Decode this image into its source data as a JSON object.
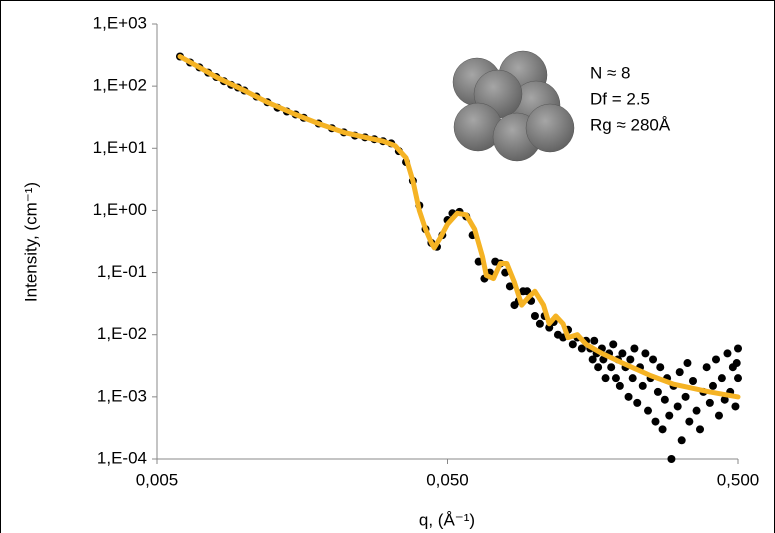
{
  "chart_data": {
    "type": "scatter",
    "xlabel": "q, (Å⁻¹)",
    "ylabel": "Intensity, (cm⁻¹)",
    "log_x": true,
    "log_y": true,
    "xlim": [
      0.005,
      0.5
    ],
    "ylim": [
      0.0001,
      1000
    ],
    "xticks": [
      {
        "value": 0.005,
        "label": "0,005"
      },
      {
        "value": 0.05,
        "label": "0,050"
      },
      {
        "value": 0.5,
        "label": "0,500"
      }
    ],
    "yticks": [
      {
        "value": 0.0001,
        "label": "1,E-04"
      },
      {
        "value": 0.001,
        "label": "1,E-03"
      },
      {
        "value": 0.01,
        "label": "1,E-02"
      },
      {
        "value": 0.1,
        "label": "1,E-01"
      },
      {
        "value": 1,
        "label": "1,E+00"
      },
      {
        "value": 10,
        "label": "1,E+01"
      },
      {
        "value": 100,
        "label": "1,E+02"
      },
      {
        "value": 1000,
        "label": "1,E+03"
      }
    ],
    "annotations": [
      "N ≈ 8",
      "Df = 2.5",
      "Rg ≈ 280Å"
    ],
    "series": [
      {
        "kind": "marker",
        "color": "#000000",
        "x": [
          0.006,
          0.0065,
          0.007,
          0.0075,
          0.008,
          0.0085,
          0.009,
          0.0095,
          0.01,
          0.011,
          0.012,
          0.013,
          0.014,
          0.015,
          0.016,
          0.018,
          0.02,
          0.022,
          0.024,
          0.026,
          0.028,
          0.03,
          0.032,
          0.034,
          0.036,
          0.038,
          0.04,
          0.042,
          0.044,
          0.046,
          0.048,
          0.05,
          0.052,
          0.055,
          0.058,
          0.061,
          0.064,
          0.067,
          0.07,
          0.073,
          0.076,
          0.079,
          0.082,
          0.085,
          0.088,
          0.091,
          0.094,
          0.097,
          0.1,
          0.104,
          0.108,
          0.112,
          0.116,
          0.12,
          0.125,
          0.13,
          0.135,
          0.14,
          0.145,
          0.15,
          0.155,
          0.158,
          0.16,
          0.163,
          0.165,
          0.17,
          0.172,
          0.175,
          0.18,
          0.183,
          0.186,
          0.19,
          0.193,
          0.196,
          0.2,
          0.205,
          0.21,
          0.213,
          0.217,
          0.22,
          0.225,
          0.23,
          0.235,
          0.24,
          0.245,
          0.25,
          0.255,
          0.26,
          0.265,
          0.27,
          0.275,
          0.28,
          0.285,
          0.29,
          0.295,
          0.3,
          0.31,
          0.315,
          0.32,
          0.33,
          0.335,
          0.34,
          0.35,
          0.36,
          0.37,
          0.38,
          0.39,
          0.4,
          0.41,
          0.42,
          0.43,
          0.44,
          0.45,
          0.46,
          0.47,
          0.48,
          0.49,
          0.5,
          0.5,
          0.495
        ],
        "values": [
          300,
          240,
          200,
          165,
          140,
          120,
          105,
          95,
          85,
          68,
          55,
          45,
          39,
          35,
          31,
          25,
          21,
          18,
          16,
          15,
          14,
          13,
          12,
          9,
          6,
          3,
          1.2,
          0.5,
          0.3,
          0.26,
          0.4,
          0.7,
          0.9,
          0.95,
          0.8,
          0.4,
          0.15,
          0.08,
          0.1,
          0.15,
          0.14,
          0.1,
          0.06,
          0.03,
          0.035,
          0.05,
          0.05,
          0.035,
          0.02,
          0.015,
          0.02,
          0.013,
          0.016,
          0.01,
          0.009,
          0.012,
          0.007,
          0.009,
          0.006,
          0.008,
          0.006,
          0.004,
          0.008,
          0.005,
          0.003,
          0.006,
          0.004,
          0.002,
          0.005,
          0.003,
          0.007,
          0.002,
          0.004,
          0.0015,
          0.005,
          0.003,
          0.001,
          0.004,
          0.002,
          0.006,
          0.0008,
          0.003,
          0.0015,
          0.005,
          0.0006,
          0.002,
          0.004,
          0.0004,
          0.0012,
          0.003,
          0.0003,
          0.0009,
          0.002,
          0.0005,
          0.0001,
          0.0015,
          0.0007,
          0.0025,
          0.0002,
          0.001,
          0.0035,
          0.0004,
          0.0018,
          0.0006,
          0.0003,
          0.0012,
          0.003,
          0.0008,
          0.0015,
          0.004,
          0.0005,
          0.002,
          0.0009,
          0.005,
          0.0012,
          0.003,
          0.0007,
          0.006,
          0.002,
          0.0035
        ]
      },
      {
        "kind": "line",
        "color": "#f5b324",
        "x": [
          0.006,
          0.007,
          0.008,
          0.01,
          0.012,
          0.015,
          0.018,
          0.022,
          0.026,
          0.03,
          0.033,
          0.036,
          0.038,
          0.04,
          0.042,
          0.044,
          0.045,
          0.047,
          0.05,
          0.054,
          0.058,
          0.062,
          0.066,
          0.068,
          0.072,
          0.076,
          0.08,
          0.085,
          0.09,
          0.095,
          0.1,
          0.107,
          0.112,
          0.118,
          0.125,
          0.13,
          0.14,
          0.15,
          0.17,
          0.2,
          0.25,
          0.3,
          0.4,
          0.5
        ],
        "values": [
          300,
          200,
          140,
          85,
          55,
          35,
          25,
          18,
          15,
          13,
          11,
          7,
          3,
          1,
          0.5,
          0.3,
          0.25,
          0.35,
          0.6,
          0.9,
          0.85,
          0.5,
          0.18,
          0.09,
          0.08,
          0.14,
          0.14,
          0.07,
          0.03,
          0.04,
          0.05,
          0.03,
          0.015,
          0.02,
          0.015,
          0.009,
          0.01,
          0.007,
          0.005,
          0.0035,
          0.0022,
          0.0016,
          0.0012,
          0.001
        ]
      }
    ]
  }
}
